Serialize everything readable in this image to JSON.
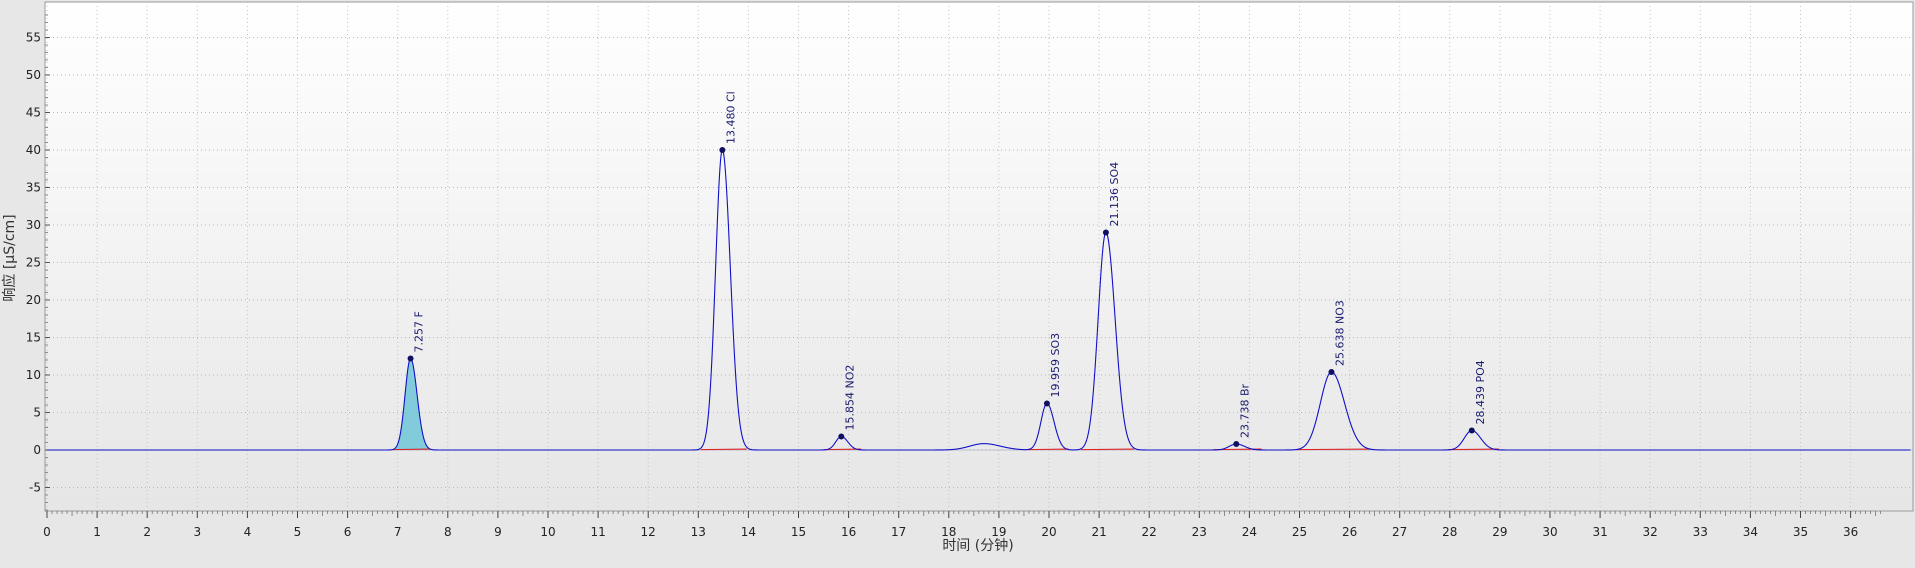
{
  "chart_data": {
    "type": "line",
    "title": "",
    "xlabel": "时间 (分钟)",
    "ylabel": "响应 [µS/cm]",
    "xlim": [
      0,
      36.6
    ],
    "ylim": [
      -8,
      60
    ],
    "x_ticks": [
      0,
      1,
      2,
      3,
      4,
      5,
      6,
      7,
      8,
      9,
      10,
      11,
      12,
      13,
      14,
      15,
      16,
      17,
      18,
      19,
      20,
      21,
      22,
      23,
      24,
      25,
      26,
      27,
      28,
      29,
      30,
      31,
      32,
      33,
      34,
      35,
      36
    ],
    "y_ticks": [
      -5,
      0,
      5,
      10,
      15,
      20,
      25,
      30,
      35,
      40,
      45,
      50,
      55
    ],
    "grid": true,
    "colors": {
      "trace": "#1010c8",
      "baseline": "#e02020",
      "peak_marker": "#101060",
      "highlight_fill": "#6fc6d8",
      "plot_bg_top": "#ffffff",
      "plot_bg_bottom": "#e6e6e6"
    },
    "peaks": [
      {
        "label": "7.257 F",
        "rt": 7.257,
        "height": 12.2,
        "width": 0.11,
        "highlight": true
      },
      {
        "label": "13.480 Cl",
        "rt": 13.48,
        "height": 40.0,
        "width": 0.135
      },
      {
        "label": "15.854 NO2",
        "rt": 15.854,
        "height": 1.8,
        "width": 0.11
      },
      {
        "label": "19.959 SO3",
        "rt": 19.959,
        "height": 6.2,
        "width": 0.12
      },
      {
        "label": "21.136 SO4",
        "rt": 21.136,
        "height": 29.0,
        "width": 0.155
      },
      {
        "label": "23.738 Br",
        "rt": 23.738,
        "height": 0.8,
        "width": 0.14
      },
      {
        "label": "25.638 NO3",
        "rt": 25.638,
        "height": 10.4,
        "width": 0.22
      },
      {
        "label": "28.439 PO4",
        "rt": 28.439,
        "height": 2.6,
        "width": 0.15
      }
    ],
    "minor_features": [
      {
        "rt": 18.7,
        "height": 0.85,
        "width": 0.28
      }
    ]
  }
}
